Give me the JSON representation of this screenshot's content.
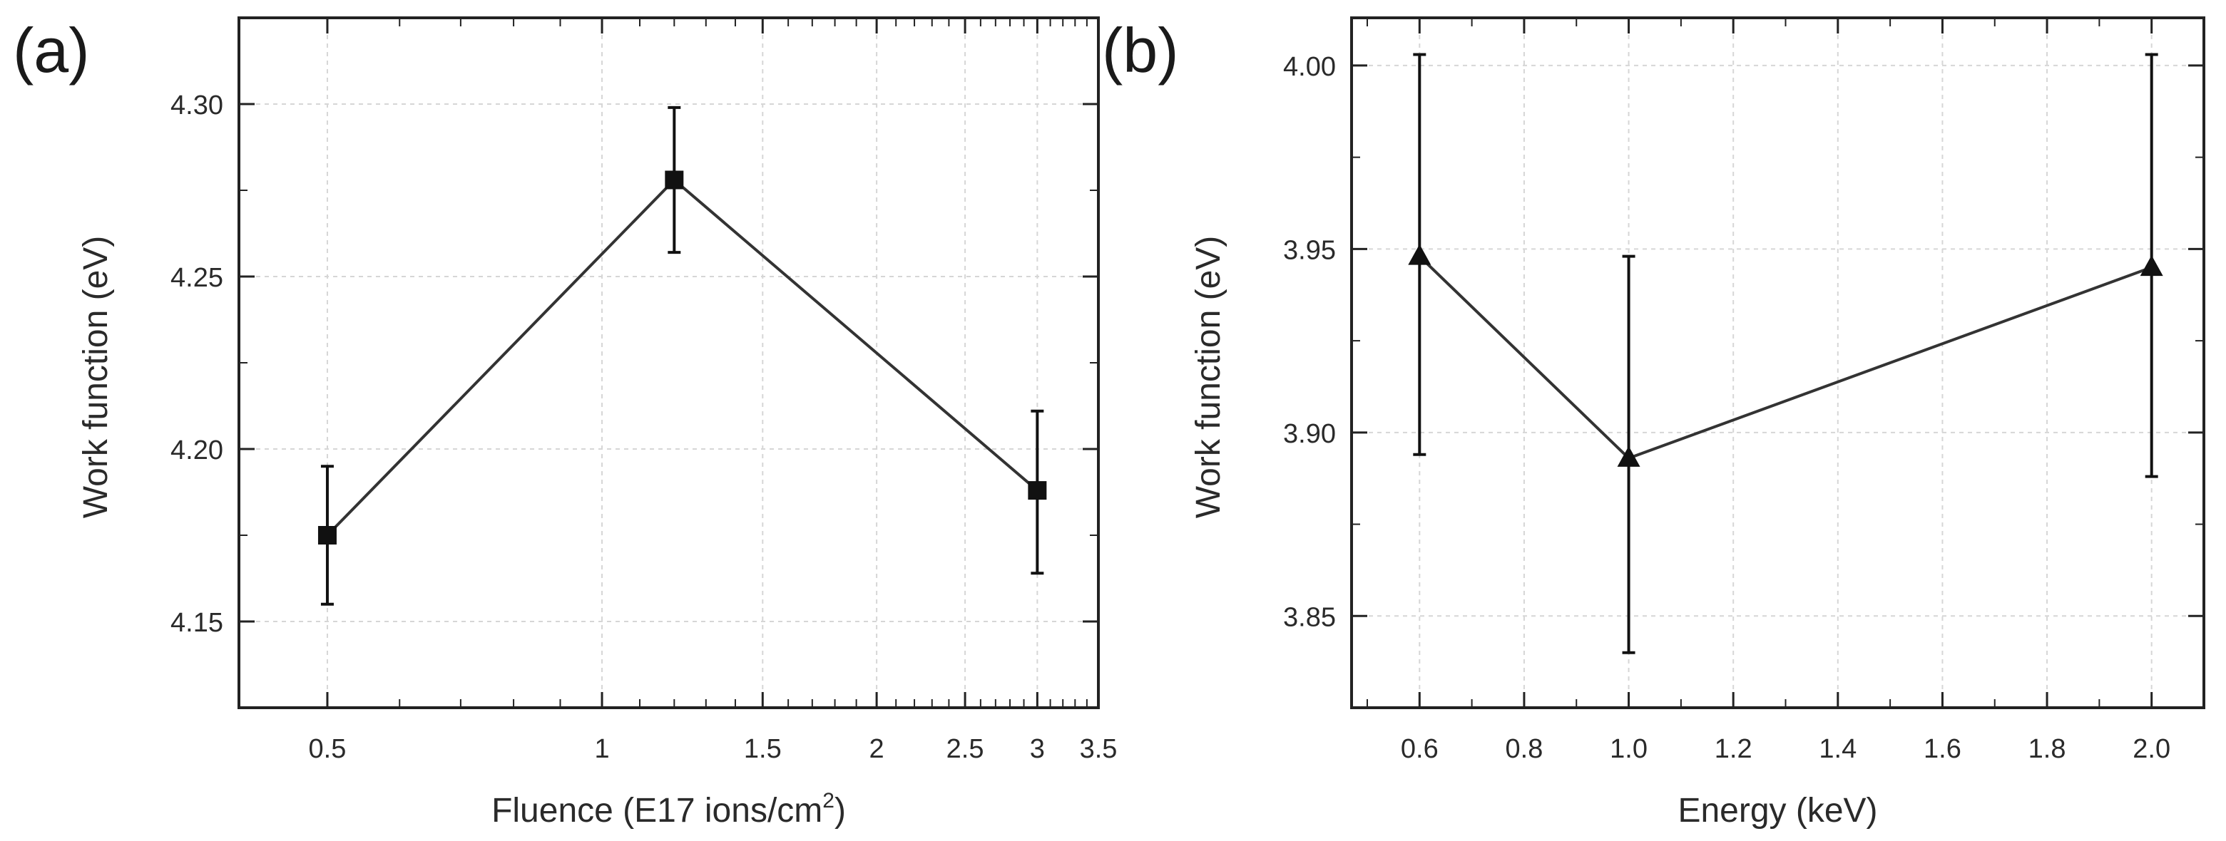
{
  "chart_data": [
    {
      "panel": "(a)",
      "type": "line",
      "xscale": "log",
      "xlabel": "Fluence (E17 ions/cm",
      "xlabel_sup": "2",
      "xlabel_end": ")",
      "ylabel": "Work function (eV)",
      "xlim": [
        0.4,
        3.5
      ],
      "ylim": [
        4.125,
        4.325
      ],
      "x_ticks": [
        0.5,
        1,
        1.5,
        2,
        2.5,
        3,
        3.5
      ],
      "x_tick_labels": [
        "0.5",
        "1",
        "1.5",
        "2",
        "2.5",
        "3",
        "3.5"
      ],
      "y_ticks": [
        4.15,
        4.2,
        4.25,
        4.3
      ],
      "y_tick_labels": [
        "4.15",
        "4.20",
        "4.25",
        "4.30"
      ],
      "grid": true,
      "marker": "square",
      "series": [
        {
          "name": "Work function",
          "x": [
            0.5,
            1.2,
            3.0
          ],
          "y": [
            4.175,
            4.278,
            4.188
          ],
          "yerr_low": [
            4.155,
            4.257,
            4.164
          ],
          "yerr_high": [
            4.195,
            4.299,
            4.211
          ]
        }
      ]
    },
    {
      "panel": "(b)",
      "type": "line",
      "xscale": "linear",
      "xlabel": "Energy (keV)",
      "ylabel": "Work function (eV)",
      "xlim": [
        0.47,
        2.1
      ],
      "ylim": [
        3.825,
        4.013
      ],
      "x_ticks": [
        0.6,
        0.8,
        1.0,
        1.2,
        1.4,
        1.6,
        1.8,
        2.0
      ],
      "x_tick_labels": [
        "0.6",
        "0.8",
        "1.0",
        "1.2",
        "1.4",
        "1.6",
        "1.8",
        "2.0"
      ],
      "y_ticks": [
        3.85,
        3.9,
        3.95,
        4.0
      ],
      "y_tick_labels": [
        "3.85",
        "3.90",
        "3.95",
        "4.00"
      ],
      "grid": true,
      "marker": "triangle",
      "series": [
        {
          "name": "Work function",
          "x": [
            0.6,
            1.0,
            2.0
          ],
          "y": [
            3.948,
            3.893,
            3.945
          ],
          "yerr_low": [
            3.894,
            3.84,
            3.888
          ],
          "yerr_high": [
            4.003,
            3.948,
            4.003
          ]
        }
      ]
    }
  ],
  "colors": {
    "axis": "#222222",
    "line": "#333333",
    "marker": "#111111",
    "grid": "#d6d6d6",
    "text": "#2a2a2a"
  }
}
